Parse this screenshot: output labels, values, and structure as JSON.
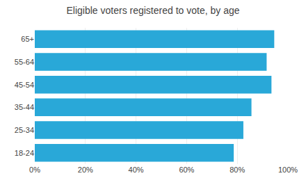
{
  "chart_data": {
    "type": "bar",
    "orientation": "horizontal",
    "title": "Eligible voters registered to vote, by age",
    "categories": [
      "18-24",
      "25-34",
      "35-44",
      "45-54",
      "55-64",
      "65+"
    ],
    "values": [
      0.786,
      0.824,
      0.856,
      0.935,
      0.916,
      0.946
    ],
    "color": "#29a8d8",
    "xlim": [
      0,
      1.0
    ],
    "xticks": [
      {
        "value": 0,
        "label": "0%"
      },
      {
        "value": 0.2,
        "label": "20%"
      },
      {
        "value": 0.4,
        "label": "40%"
      },
      {
        "value": 0.6,
        "label": "60%"
      },
      {
        "value": 0.8,
        "label": "80%"
      },
      {
        "value": 1.0,
        "label": "100%"
      }
    ],
    "grid": true
  }
}
